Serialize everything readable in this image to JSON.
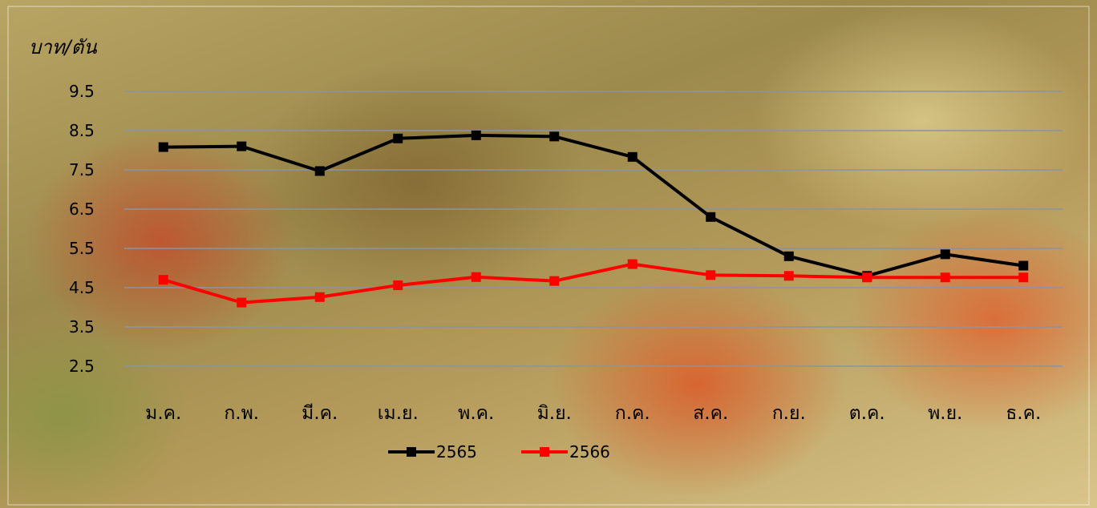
{
  "chart_data": {
    "type": "line",
    "ylabel": "บาท/ตัน",
    "categories": [
      "ม.ค.",
      "ก.พ.",
      "มี.ค.",
      "เม.ย.",
      "พ.ค.",
      "มิ.ย.",
      "ก.ค.",
      "ส.ค.",
      "ก.ย.",
      "ต.ค.",
      "พ.ย.",
      "ธ.ค."
    ],
    "yticks": [
      "9.5",
      "8.5",
      "7.5",
      "6.5",
      "5.5",
      "4.5",
      "3.5",
      "2.5"
    ],
    "ylim": [
      2.5,
      9.5
    ],
    "grid": true,
    "legend_position": "bottom",
    "series": [
      {
        "name": "2565",
        "color": "#000000",
        "values": [
          8.08,
          8.1,
          7.47,
          8.3,
          8.38,
          8.35,
          7.83,
          6.3,
          5.3,
          4.8,
          5.35,
          5.06
        ]
      },
      {
        "name": "2566",
        "color": "#ff0000",
        "values": [
          4.7,
          4.12,
          4.26,
          4.56,
          4.77,
          4.67,
          5.1,
          4.82,
          4.8,
          4.76,
          4.76,
          4.76
        ]
      }
    ]
  }
}
